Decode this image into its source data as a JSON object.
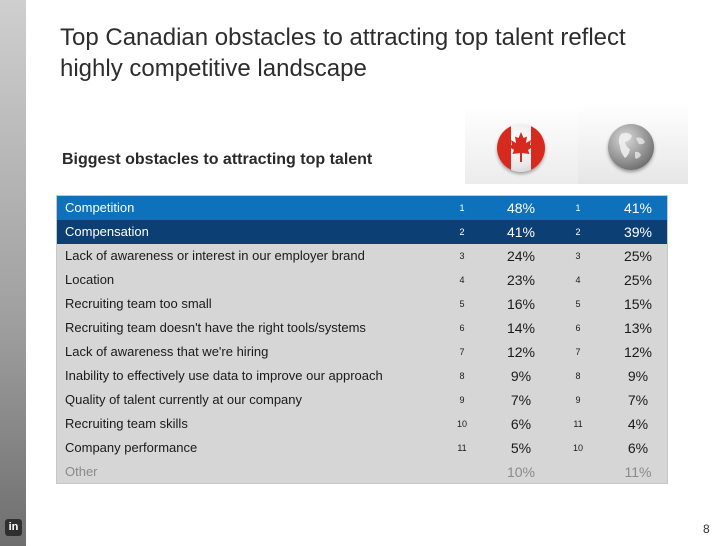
{
  "title": {
    "line1": "Top Canadian obstacles to attracting top talent reflect",
    "line2": "highly competitive landscape"
  },
  "subtitle": "Biggest obstacles to attracting top talent",
  "icons": {
    "canada": "canada-flag-icon",
    "global": "globe-icon",
    "linkedin": "linkedin-icon"
  },
  "logo_text": "in",
  "colors": {
    "row_highlight_1": "#0e71bb",
    "row_highlight_2": "#0c3f74",
    "table_bg": "#d6d6d6",
    "flag_red": "#d62a1e"
  },
  "rows": [
    {
      "label": "Competition",
      "ca_rank": "1",
      "ca_pct": "48%",
      "gl_rank": "1",
      "gl_pct": "41%"
    },
    {
      "label": "Compensation",
      "ca_rank": "2",
      "ca_pct": "41%",
      "gl_rank": "2",
      "gl_pct": "39%"
    },
    {
      "label": "Lack of awareness or interest in our employer brand",
      "ca_rank": "3",
      "ca_pct": "24%",
      "gl_rank": "3",
      "gl_pct": "25%"
    },
    {
      "label": "Location",
      "ca_rank": "4",
      "ca_pct": "23%",
      "gl_rank": "4",
      "gl_pct": "25%"
    },
    {
      "label": "Recruiting team too small",
      "ca_rank": "5",
      "ca_pct": "16%",
      "gl_rank": "5",
      "gl_pct": "15%"
    },
    {
      "label": "Recruiting team doesn't have the right tools/systems",
      "ca_rank": "6",
      "ca_pct": "14%",
      "gl_rank": "6",
      "gl_pct": "13%"
    },
    {
      "label": "Lack of awareness that we're hiring",
      "ca_rank": "7",
      "ca_pct": "12%",
      "gl_rank": "7",
      "gl_pct": "12%"
    },
    {
      "label": "Inability to effectively use data to improve our approach",
      "ca_rank": "8",
      "ca_pct": "9%",
      "gl_rank": "8",
      "gl_pct": "9%"
    },
    {
      "label": "Quality of talent currently at our company",
      "ca_rank": "9",
      "ca_pct": "7%",
      "gl_rank": "9",
      "gl_pct": "7%"
    },
    {
      "label": "Recruiting team skills",
      "ca_rank": "10",
      "ca_pct": "6%",
      "gl_rank": "11",
      "gl_pct": "4%"
    },
    {
      "label": "Company performance",
      "ca_rank": "11",
      "ca_pct": "5%",
      "gl_rank": "10",
      "gl_pct": "6%"
    },
    {
      "label": "Other",
      "ca_rank": "",
      "ca_pct": "10%",
      "gl_rank": "",
      "gl_pct": "11%"
    }
  ],
  "page_number": "8"
}
